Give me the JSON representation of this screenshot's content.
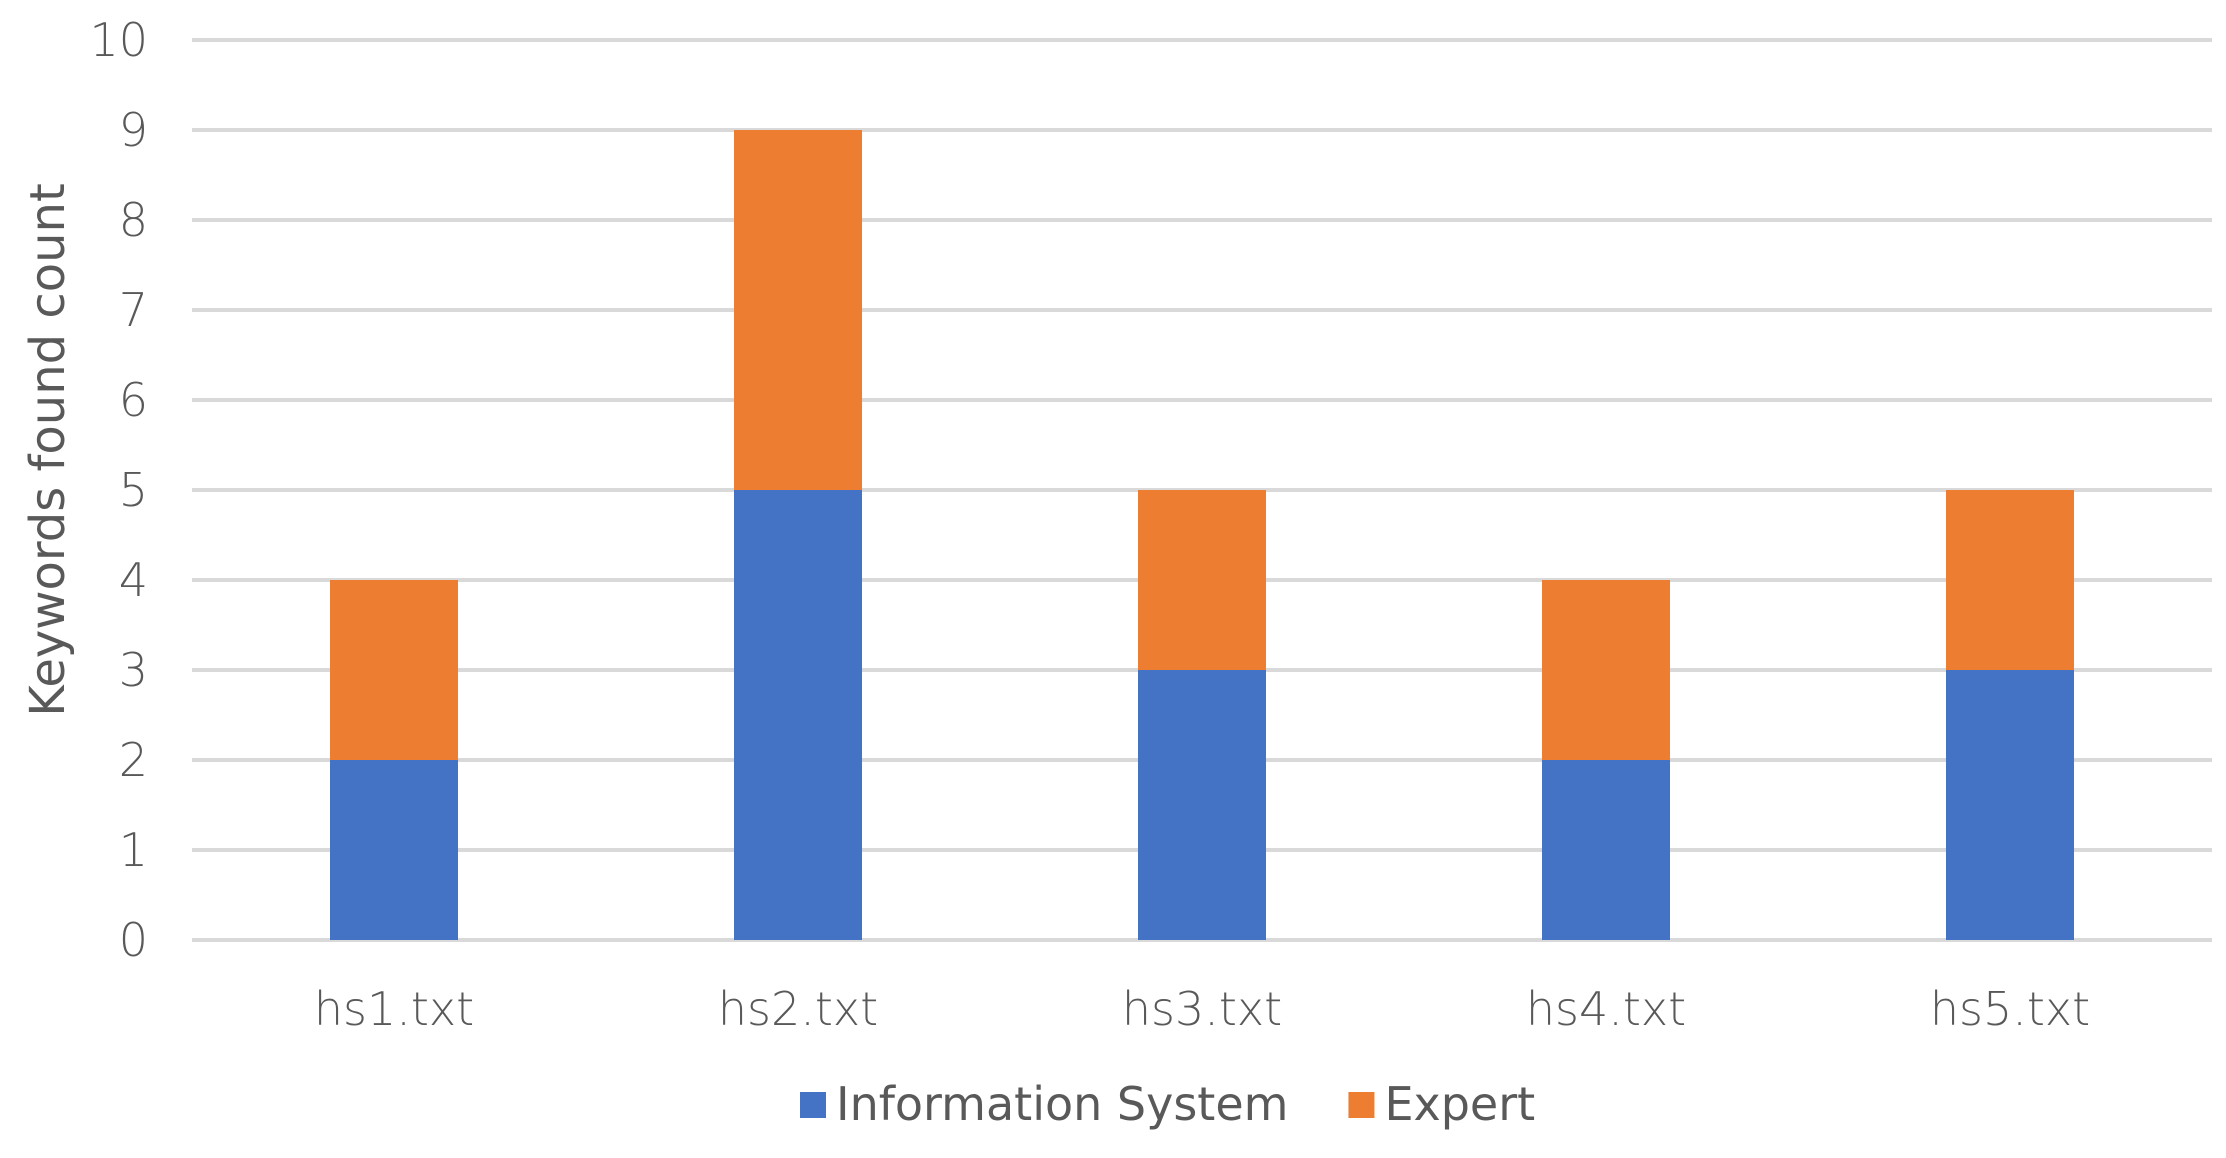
{
  "chart_data": {
    "type": "bar",
    "stacked": true,
    "categories": [
      "hs1.txt",
      "hs2.txt",
      "hs3.txt",
      "hs4.txt",
      "hs5.txt"
    ],
    "series": [
      {
        "name": "Information System",
        "values": [
          2,
          5,
          3,
          2,
          3
        ],
        "color": "#4472C4"
      },
      {
        "name": "Expert",
        "values": [
          2,
          4,
          2,
          2,
          2
        ],
        "color": "#ED7D31"
      }
    ],
    "title": "",
    "xlabel": "",
    "ylabel": "Keywords found count",
    "ylim": [
      0,
      10
    ],
    "yticks": [
      0,
      1,
      2,
      3,
      4,
      5,
      6,
      7,
      8,
      9,
      10
    ],
    "grid": true,
    "legend_position": "bottom-center",
    "colors": {
      "grid": "#D9D9D9",
      "text": "#595959"
    }
  }
}
